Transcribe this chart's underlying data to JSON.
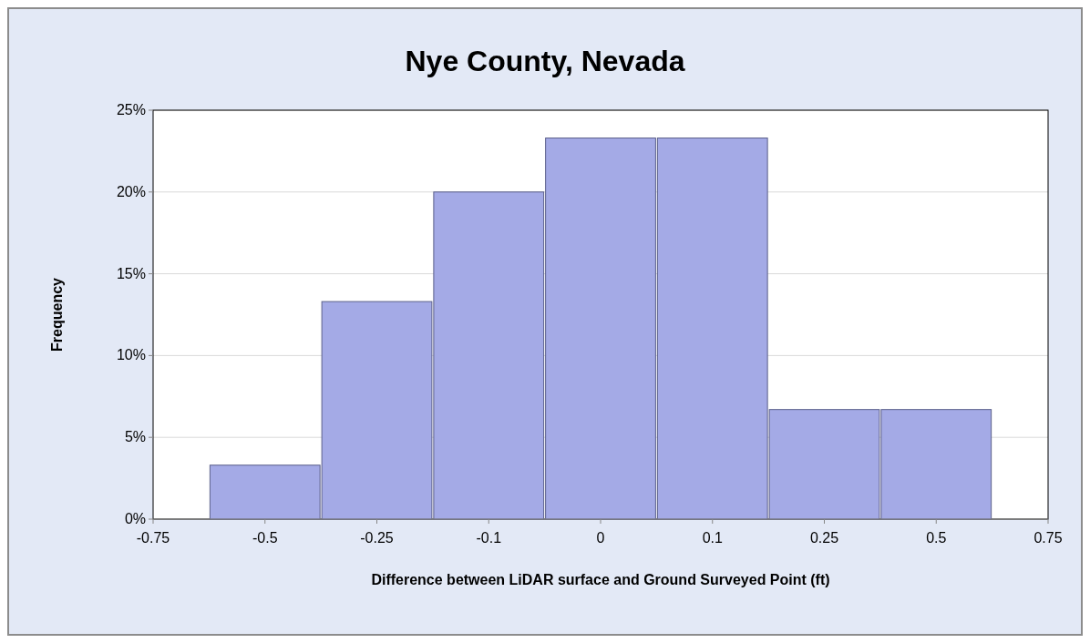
{
  "chart_data": {
    "type": "bar",
    "title": "Nye County, Nevada",
    "xlabel": "Difference between LiDAR surface and Ground Surveyed Point (ft)",
    "ylabel": "Frequency",
    "categories": [
      "-0.75",
      "-0.5",
      "-0.25",
      "-0.1",
      "0",
      "0.1",
      "0.25",
      "0.5",
      "0.75"
    ],
    "values": [
      null,
      3.3,
      13.3,
      20,
      23.3,
      23.3,
      6.7,
      6.7,
      null
    ],
    "color": "#a4aae6",
    "ylim": [
      0,
      25
    ],
    "yticks": [
      {
        "value": 0,
        "label": "0%"
      },
      {
        "value": 5,
        "label": "5%"
      },
      {
        "value": 10,
        "label": "10%"
      },
      {
        "value": 15,
        "label": "15%"
      },
      {
        "value": 20,
        "label": "20%"
      },
      {
        "value": 25,
        "label": "25%"
      }
    ],
    "grid": "y"
  }
}
